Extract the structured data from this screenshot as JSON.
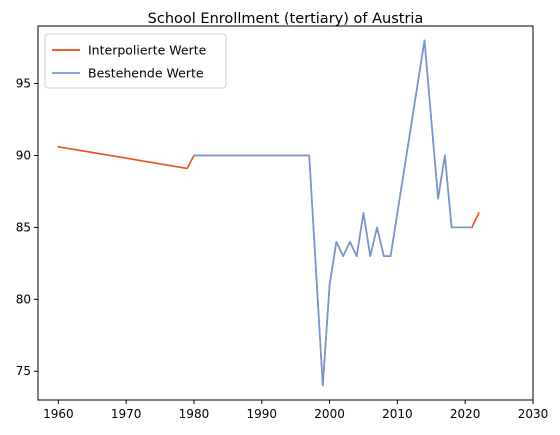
{
  "chart_data": {
    "type": "line",
    "title": "School Enrollment (tertiary) of Austria",
    "xlabel": "",
    "ylabel": "",
    "xlim": [
      1957,
      2030
    ],
    "ylim": [
      73,
      99
    ],
    "xticks": [
      1960,
      1970,
      1980,
      1990,
      2000,
      2010,
      2020,
      2030
    ],
    "yticks": [
      75,
      80,
      85,
      90,
      95
    ],
    "grid": false,
    "legend_position": "top-left",
    "series": [
      {
        "name": "Interpolierte Werte",
        "color": "#f24b15",
        "x": [
          1960,
          1979,
          1980,
          1997,
          1999,
          2000,
          2001,
          2002,
          2003,
          2004,
          2005,
          2006,
          2007,
          2008,
          2009,
          2014,
          2016,
          2017,
          2018,
          2021,
          2022
        ],
        "y": [
          90.6,
          89.1,
          90,
          90,
          74,
          81,
          84,
          83,
          84,
          83,
          86,
          83,
          85,
          83,
          83,
          98,
          87,
          90,
          85,
          85,
          86
        ]
      },
      {
        "name": "Bestehende Werte",
        "color": "#6d98e0",
        "x": [
          1980,
          1997,
          1999,
          2000,
          2001,
          2002,
          2003,
          2004,
          2005,
          2006,
          2007,
          2008,
          2009,
          2014,
          2016,
          2017,
          2018,
          2021
        ],
        "y": [
          90,
          90,
          74,
          81,
          84,
          83,
          84,
          83,
          86,
          83,
          85,
          83,
          83,
          98,
          87,
          90,
          85,
          85
        ]
      }
    ]
  }
}
